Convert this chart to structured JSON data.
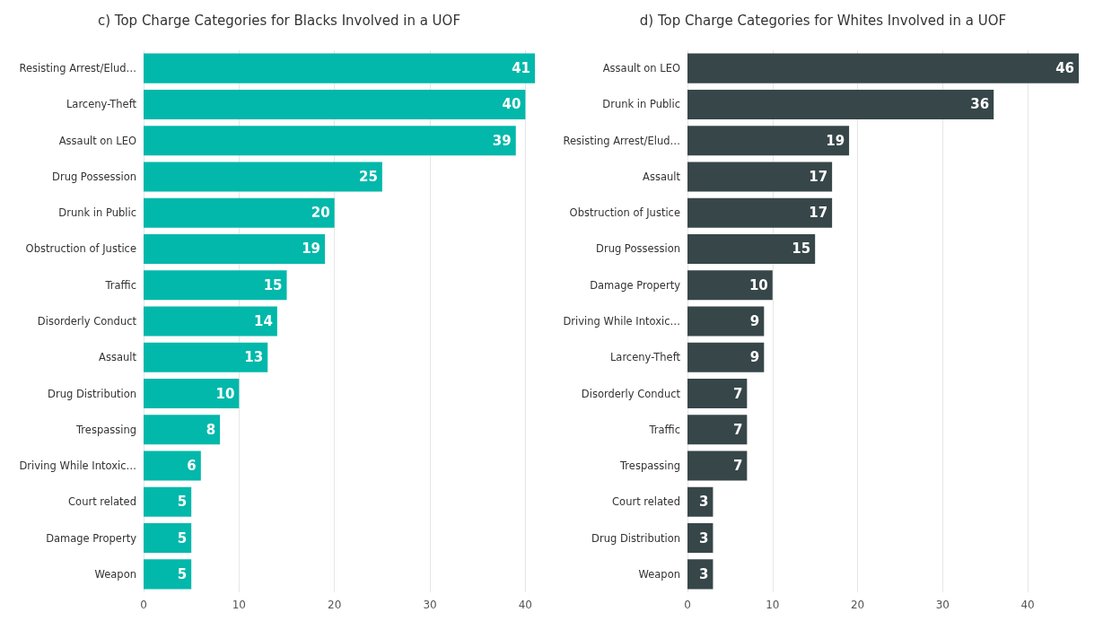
{
  "chart_data": [
    {
      "type": "bar",
      "orientation": "horizontal",
      "title": "c) Top Charge Categories for Blacks Involved in a UOF",
      "categories": [
        "Resisting Arrest/Elud…",
        "Larceny-Theft",
        "Assault on LEO",
        "Drug Possession",
        "Drunk in Public",
        "Obstruction of Justice",
        "Traffic",
        "Disorderly Conduct",
        "Assault",
        "Drug Distribution",
        "Trespassing",
        "Driving While Intoxic…",
        "Court related",
        "Damage Property",
        "Weapon"
      ],
      "values": [
        41,
        40,
        39,
        25,
        20,
        19,
        15,
        14,
        13,
        10,
        8,
        6,
        5,
        5,
        5
      ],
      "color": "#01b8aa",
      "xlim": [
        0,
        41
      ],
      "xticks": [
        0,
        10,
        20,
        30,
        40
      ],
      "grid": "x",
      "data_labels": true
    },
    {
      "type": "bar",
      "orientation": "horizontal",
      "title": "d) Top Charge Categories for Whites Involved in a UOF",
      "categories": [
        "Assault on LEO",
        "Drunk in Public",
        "Resisting Arrest/Elud…",
        "Assault",
        "Obstruction of Justice",
        "Drug Possession",
        "Damage Property",
        "Driving While Intoxic…",
        "Larceny-Theft",
        "Disorderly Conduct",
        "Traffic",
        "Trespassing",
        "Court related",
        "Drug Distribution",
        "Weapon"
      ],
      "values": [
        46,
        36,
        19,
        17,
        17,
        15,
        10,
        9,
        9,
        7,
        7,
        7,
        3,
        3,
        3
      ],
      "color": "#374649",
      "xlim": [
        0,
        46
      ],
      "xticks": [
        0,
        10,
        20,
        30,
        40
      ],
      "grid": "x",
      "data_labels": true
    }
  ]
}
